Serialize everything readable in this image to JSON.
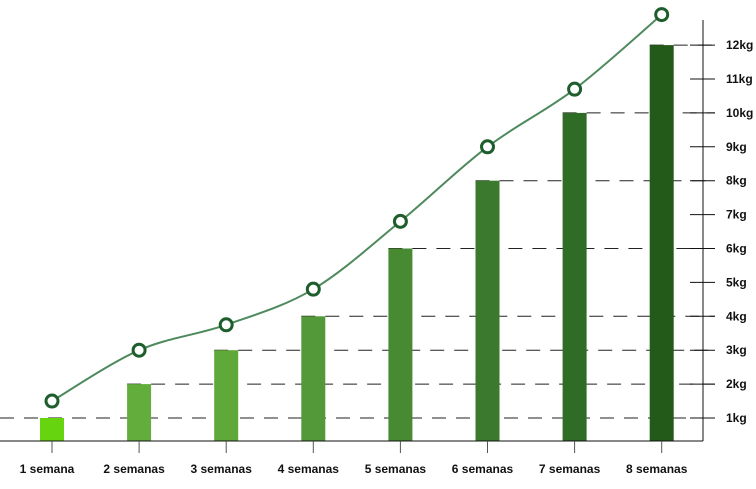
{
  "chart_data": {
    "type": "bar",
    "title": "",
    "xlabel": "",
    "ylabel": "",
    "categories": [
      "1 semana",
      "2 semanas",
      "3 semanas",
      "4 semanas",
      "5 semanas",
      "6 semanas",
      "7 semanas",
      "8 semanas"
    ],
    "series": [
      {
        "type": "bar",
        "values": [
          1,
          2,
          3,
          4,
          6,
          8,
          10,
          12
        ]
      },
      {
        "type": "line",
        "values": [
          1.5,
          3,
          3.75,
          4.8,
          6.8,
          9,
          10.7,
          12.9
        ]
      }
    ],
    "y_ticks": [
      "1kg",
      "2kg",
      "3kg",
      "4kg",
      "5kg",
      "6kg",
      "7kg",
      "8kg",
      "9kg",
      "10kg",
      "11kg",
      "12kg"
    ],
    "y_axis_position": "right",
    "grid": "dashed lines at bar tops",
    "colors": {
      "bars": [
        "#66d40e",
        "#63ad3c",
        "#5ea93a",
        "#53993a",
        "#478a32",
        "#3b7a2e",
        "#2f6c26",
        "#245a19"
      ],
      "line": "#4e8a5e",
      "marker_stroke": "#1e5e2c",
      "axis": "#111111"
    }
  }
}
